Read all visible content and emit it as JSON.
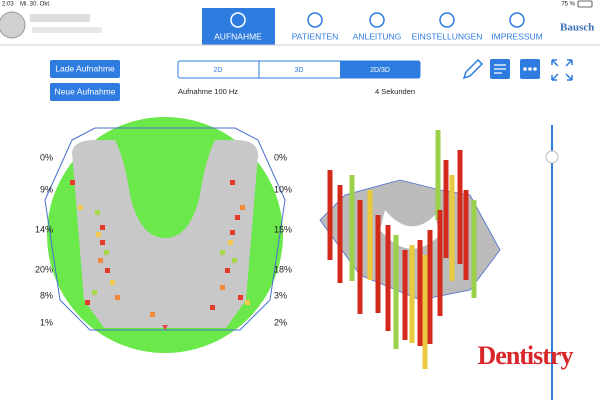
{
  "status_bar": {
    "time": "2:03",
    "date": "Mi. 30. Okt.",
    "battery": "75 %"
  },
  "nav": {
    "tabs": [
      "AUFNAHME",
      "PATIENTEN",
      "ANLEITUNG",
      "EINSTELLUNGEN",
      "IMPRESSUM"
    ],
    "logo": "Bausch"
  },
  "buttons": [
    "Lade Aufnahme",
    "Neue Aufnahme"
  ],
  "view_modes": [
    "2D",
    "3D",
    "2D/3D"
  ],
  "recording": {
    "rate": "Aufnahme 100 Hz",
    "duration": "4 Sekunden"
  },
  "left_chart": {
    "left_labels": [
      "0%",
      "9%",
      "14%",
      "20%",
      "8%",
      "1%"
    ],
    "right_labels": [
      "0%",
      "10%",
      "15%",
      "18%",
      "3%",
      "2%"
    ]
  },
  "watermark": "Dentistry"
}
